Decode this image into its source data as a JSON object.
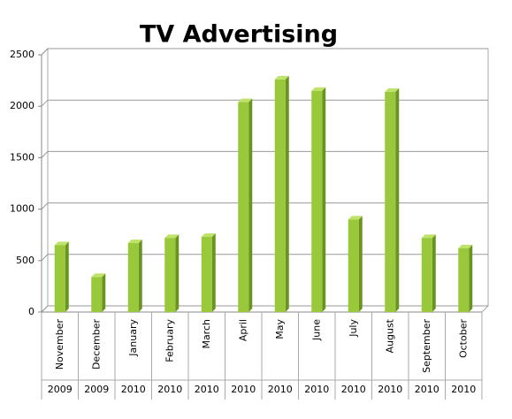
{
  "chart_data": {
    "type": "bar",
    "title": "TV Advertising",
    "categories": [
      "November",
      "December",
      "January",
      "February",
      "March",
      "April",
      "May",
      "June",
      "July",
      "August",
      "September",
      "October"
    ],
    "category_years": [
      "2009",
      "2009",
      "2010",
      "2010",
      "2010",
      "2010",
      "2010",
      "2010",
      "2010",
      "2010",
      "2010",
      "2010"
    ],
    "values": [
      650,
      340,
      670,
      720,
      730,
      2040,
      2260,
      2150,
      900,
      2140,
      720,
      620
    ],
    "color": "#99c93a",
    "ylim": [
      0,
      2500
    ],
    "yticks": [
      0,
      500,
      1000,
      1500,
      2000,
      2500
    ],
    "grid": true
  }
}
